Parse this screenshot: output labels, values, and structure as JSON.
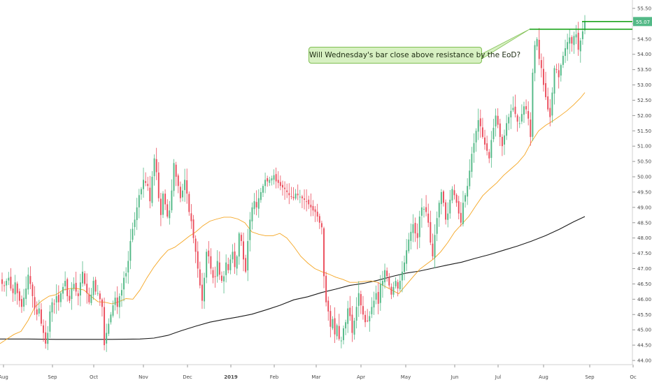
{
  "chart_data": {
    "type": "candlestick",
    "annotation": "Will Wednesday's bar close above resistance by the EoD?",
    "price_label": "55.07",
    "ylim": [
      43.8,
      55.75
    ],
    "y_ticks": [
      "44.00",
      "44.50",
      "45.00",
      "45.50",
      "46.00",
      "46.50",
      "47.00",
      "47.50",
      "48.00",
      "48.50",
      "49.00",
      "49.50",
      "50.00",
      "50.50",
      "51.00",
      "51.50",
      "52.00",
      "52.50",
      "53.00",
      "53.50",
      "54.00",
      "54.50",
      "55.00",
      "55.50"
    ],
    "x_ticks": [
      "Aug",
      "Sep",
      "Oct",
      "Nov",
      "Dec",
      "2019",
      "Feb",
      "Mar",
      "Apr",
      "May",
      "Jun",
      "Jul",
      "Aug",
      "Sep",
      "Oc"
    ],
    "resistance_level": 54.82,
    "colors": {
      "up": "#53b987",
      "down": "#eb4d5c",
      "sma_short": "#f5a623",
      "sma_long": "#1a1a1a",
      "resistance": "#1ea51e",
      "price_tag": "#53b987"
    },
    "closes": [
      46.5,
      46.45,
      46.6,
      46.7,
      46.35,
      46.2,
      46.55,
      46.2,
      45.95,
      45.75,
      46.05,
      46.35,
      46.8,
      46.5,
      46.1,
      45.7,
      45.5,
      45.7,
      45.2,
      44.9,
      44.55,
      44.9,
      45.6,
      45.9,
      45.85,
      46.1,
      45.9,
      46.2,
      46.4,
      46.6,
      46.1,
      45.95,
      46.35,
      46.5,
      46.25,
      46.1,
      46.55,
      46.9,
      46.5,
      46.2,
      45.9,
      46.15,
      46.6,
      46.25,
      46.2,
      46.0,
      45.75,
      44.5,
      44.9,
      45.2,
      45.5,
      45.8,
      46.05,
      45.75,
      46.1,
      46.3,
      46.7,
      46.85,
      47.25,
      47.9,
      48.3,
      48.6,
      49.0,
      49.4,
      49.6,
      49.9,
      49.8,
      49.7,
      49.2,
      50.0,
      50.6,
      50.15,
      49.3,
      48.75,
      49.45,
      49.1,
      48.7,
      48.9,
      49.55,
      50.45,
      50.0,
      49.7,
      49.3,
      49.55,
      49.9,
      49.45,
      48.85,
      48.55,
      48.0,
      47.55,
      47.0,
      46.45,
      45.95,
      46.7,
      47.55,
      47.4,
      47.0,
      46.7,
      46.75,
      47.25,
      46.8,
      46.6,
      46.75,
      47.2,
      46.95,
      47.3,
      47.55,
      47.05,
      47.4,
      48.15,
      47.9,
      47.3,
      46.9,
      47.9,
      48.6,
      49.0,
      49.2,
      49.0,
      49.3,
      49.5,
      49.7,
      49.9,
      49.85,
      49.9,
      49.95,
      50.05,
      49.85,
      49.8,
      49.7,
      49.65,
      49.6,
      49.5,
      49.4,
      49.35,
      49.3,
      49.45,
      49.4,
      49.35,
      49.3,
      49.25,
      49.2,
      49.1,
      49.0,
      48.9,
      48.85,
      48.7,
      48.5,
      48.35,
      46.75,
      45.9,
      45.6,
      45.1,
      45.35,
      44.85,
      45.15,
      44.7,
      44.65,
      45.05,
      45.25,
      45.7,
      45.45,
      44.9,
      45.3,
      45.75,
      46.2,
      45.8,
      45.5,
      45.25,
      45.3,
      45.45,
      45.75,
      45.95,
      46.2,
      45.85,
      46.5,
      46.6,
      46.95,
      46.75,
      46.45,
      46.15,
      46.4,
      46.6,
      46.35,
      46.6,
      46.9,
      47.2,
      47.6,
      47.95,
      48.2,
      48.45,
      48.15,
      48.0,
      48.7,
      49.0,
      48.95,
      48.85,
      48.5,
      47.85,
      47.4,
      48.1,
      48.65,
      49.15,
      49.5,
      49.15,
      48.6,
      48.8,
      49.25,
      49.6,
      49.4,
      49.15,
      48.8,
      48.5,
      49.15,
      49.4,
      49.7,
      50.2,
      50.75,
      51.1,
      51.5,
      51.85,
      51.65,
      51.3,
      51.05,
      50.85,
      50.6,
      51.2,
      51.6,
      52.0,
      51.7,
      51.3,
      51.0,
      51.35,
      51.75,
      51.95,
      52.15,
      52.25,
      52.05,
      51.8,
      51.75,
      52.05,
      52.3,
      52.2,
      51.9,
      51.3,
      53.4,
      54.3,
      54.5,
      53.85,
      53.55,
      53.0,
      52.6,
      52.2,
      51.95,
      52.75,
      53.55,
      53.5,
      53.25,
      53.65,
      53.95,
      54.2,
      54.4,
      54.55,
      54.35,
      54.6,
      54.65,
      54.15,
      54.45,
      54.75,
      55.07
    ],
    "sma_short": [
      [
        0,
        44.55
      ],
      [
        10,
        44.7
      ],
      [
        20,
        44.85
      ],
      [
        30,
        44.95
      ],
      [
        40,
        45.3
      ],
      [
        50,
        45.75
      ],
      [
        60,
        45.95
      ],
      [
        70,
        46.1
      ],
      [
        80,
        46.15
      ],
      [
        90,
        46.3
      ],
      [
        100,
        46.35
      ],
      [
        110,
        46.35
      ],
      [
        120,
        46.3
      ],
      [
        130,
        46.1
      ],
      [
        140,
        45.92
      ],
      [
        150,
        45.9
      ],
      [
        160,
        45.85
      ],
      [
        170,
        45.92
      ],
      [
        180,
        46.02
      ],
      [
        190,
        46.0
      ],
      [
        200,
        46.3
      ],
      [
        210,
        46.7
      ],
      [
        220,
        47.05
      ],
      [
        230,
        47.35
      ],
      [
        240,
        47.6
      ],
      [
        250,
        47.7
      ],
      [
        260,
        47.87
      ],
      [
        270,
        48.05
      ],
      [
        280,
        48.2
      ],
      [
        290,
        48.4
      ],
      [
        300,
        48.55
      ],
      [
        310,
        48.62
      ],
      [
        320,
        48.68
      ],
      [
        330,
        48.68
      ],
      [
        340,
        48.62
      ],
      [
        350,
        48.5
      ],
      [
        360,
        48.2
      ],
      [
        370,
        48.12
      ],
      [
        380,
        48.07
      ],
      [
        390,
        48.07
      ],
      [
        400,
        48.15
      ],
      [
        410,
        48.0
      ],
      [
        420,
        47.72
      ],
      [
        430,
        47.4
      ],
      [
        440,
        47.18
      ],
      [
        450,
        47.0
      ],
      [
        460,
        46.9
      ],
      [
        470,
        46.82
      ],
      [
        480,
        46.72
      ],
      [
        490,
        46.65
      ],
      [
        500,
        46.55
      ],
      [
        510,
        46.55
      ],
      [
        520,
        46.58
      ],
      [
        530,
        46.6
      ],
      [
        540,
        46.55
      ],
      [
        550,
        46.42
      ],
      [
        560,
        46.3
      ],
      [
        570,
        46.18
      ],
      [
        580,
        46.45
      ],
      [
        590,
        46.72
      ],
      [
        600,
        46.98
      ],
      [
        610,
        47.15
      ],
      [
        620,
        47.32
      ],
      [
        630,
        47.55
      ],
      [
        640,
        47.85
      ],
      [
        650,
        48.2
      ],
      [
        660,
        48.45
      ],
      [
        670,
        48.7
      ],
      [
        680,
        49.05
      ],
      [
        690,
        49.38
      ],
      [
        700,
        49.6
      ],
      [
        710,
        49.8
      ],
      [
        720,
        50.05
      ],
      [
        730,
        50.25
      ],
      [
        740,
        50.45
      ],
      [
        750,
        50.72
      ],
      [
        760,
        51.15
      ],
      [
        770,
        51.5
      ],
      [
        780,
        51.68
      ],
      [
        790,
        51.82
      ],
      [
        800,
        51.98
      ],
      [
        810,
        52.15
      ],
      [
        820,
        52.35
      ],
      [
        830,
        52.58
      ],
      [
        836,
        52.75
      ]
    ],
    "sma_long": [
      [
        0,
        44.7
      ],
      [
        40,
        44.7
      ],
      [
        80,
        44.69
      ],
      [
        120,
        44.69
      ],
      [
        160,
        44.69
      ],
      [
        200,
        44.7
      ],
      [
        220,
        44.73
      ],
      [
        240,
        44.82
      ],
      [
        260,
        44.98
      ],
      [
        280,
        45.12
      ],
      [
        300,
        45.25
      ],
      [
        320,
        45.34
      ],
      [
        340,
        45.42
      ],
      [
        360,
        45.51
      ],
      [
        380,
        45.65
      ],
      [
        400,
        45.8
      ],
      [
        420,
        45.98
      ],
      [
        440,
        46.08
      ],
      [
        460,
        46.22
      ],
      [
        480,
        46.33
      ],
      [
        500,
        46.45
      ],
      [
        520,
        46.52
      ],
      [
        540,
        46.62
      ],
      [
        560,
        46.74
      ],
      [
        580,
        46.85
      ],
      [
        600,
        46.92
      ],
      [
        620,
        47.02
      ],
      [
        640,
        47.12
      ],
      [
        660,
        47.21
      ],
      [
        680,
        47.34
      ],
      [
        700,
        47.46
      ],
      [
        720,
        47.6
      ],
      [
        740,
        47.74
      ],
      [
        760,
        47.9
      ],
      [
        780,
        48.08
      ],
      [
        800,
        48.29
      ],
      [
        820,
        48.53
      ],
      [
        836,
        48.7
      ]
    ]
  }
}
